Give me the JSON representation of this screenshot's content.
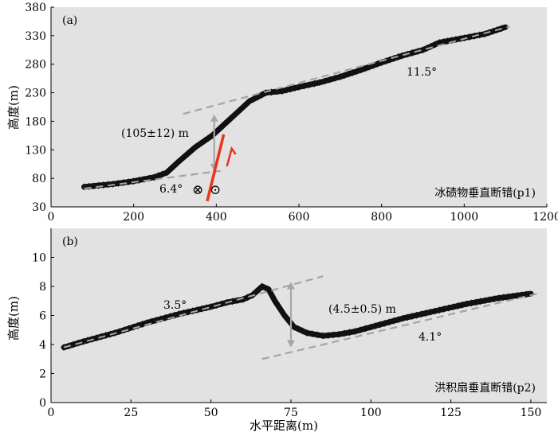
{
  "chart_data": [
    {
      "type": "line",
      "panel_label": "(a)",
      "caption": "冰碛物垂直断错(p1)",
      "ylabel": "高度(m)",
      "xlim": [
        0,
        1200
      ],
      "ylim": [
        30,
        380
      ],
      "xticks": [
        "0",
        "200",
        "400",
        "600",
        "800",
        "1000",
        "1200"
      ],
      "yticks": [
        "30",
        "80",
        "130",
        "180",
        "230",
        "280",
        "330",
        "380"
      ],
      "series": [
        {
          "name": "profile p1",
          "x": [
            80,
            150,
            200,
            250,
            280,
            310,
            350,
            390,
            420,
            450,
            480,
            520,
            560,
            600,
            650,
            700,
            750,
            800,
            850,
            900,
            940,
            970,
            1000,
            1050,
            1100
          ],
          "y": [
            65,
            70,
            75,
            82,
            90,
            110,
            135,
            155,
            175,
            195,
            215,
            230,
            233,
            240,
            248,
            258,
            270,
            283,
            295,
            305,
            318,
            322,
            326,
            333,
            345
          ]
        }
      ],
      "fit_lines": [
        {
          "name": "lower surface",
          "x": [
            80,
            410
          ],
          "y": [
            62,
            93
          ]
        },
        {
          "name": "upper surface",
          "x": [
            320,
            1110
          ],
          "y": [
            193,
            346
          ]
        }
      ],
      "offset": {
        "x": 395,
        "y_low": 93,
        "y_high": 192
      },
      "fault": {
        "x": [
          378,
          418
        ],
        "y": [
          40,
          157
        ]
      },
      "annotations": {
        "upper_slope": "11.5°",
        "lower_slope": "6.4°",
        "offset_label": "(105±12) m",
        "symbol_into_page": "⊗",
        "symbol_out_of_page": "⊙"
      }
    },
    {
      "type": "line",
      "panel_label": "(b)",
      "caption": "洪积扇垂直断错(p2)",
      "ylabel": "高度(m)",
      "xlabel": "水平距离(m)",
      "xlim": [
        0,
        155
      ],
      "ylim": [
        0,
        12
      ],
      "xticks": [
        "0",
        "25",
        "50",
        "75",
        "100",
        "125",
        "150"
      ],
      "yticks": [
        "0",
        "2",
        "4",
        "6",
        "8",
        "10"
      ],
      "series": [
        {
          "name": "profile p2",
          "x": [
            4,
            10,
            20,
            30,
            40,
            50,
            55,
            60,
            63,
            66,
            68,
            70,
            73,
            76,
            80,
            85,
            90,
            95,
            100,
            110,
            120,
            130,
            140,
            150
          ],
          "y": [
            3.8,
            4.2,
            4.8,
            5.5,
            6.1,
            6.6,
            6.9,
            7.1,
            7.4,
            8.0,
            7.8,
            7.0,
            6.0,
            5.2,
            4.8,
            4.6,
            4.7,
            4.9,
            5.2,
            5.8,
            6.3,
            6.8,
            7.2,
            7.5
          ]
        }
      ],
      "fit_lines": [
        {
          "name": "upper surface",
          "x": [
            4,
            85
          ],
          "y": [
            3.8,
            8.7
          ]
        },
        {
          "name": "lower surface",
          "x": [
            66,
            152
          ],
          "y": [
            3.0,
            7.5
          ]
        }
      ],
      "offset": {
        "x": 75,
        "y_low": 3.8,
        "y_high": 8.3
      },
      "annotations": {
        "upper_slope": "3.5°",
        "lower_slope": "4.1°",
        "offset_label": "(4.5±0.5) m"
      }
    }
  ],
  "colors": {
    "panel_bg": "#e2e2e2",
    "profile": "#111111",
    "fit_line": "#a6a6a6",
    "offset_arrow": "#a6a6a6",
    "fault": "#e8341c"
  }
}
